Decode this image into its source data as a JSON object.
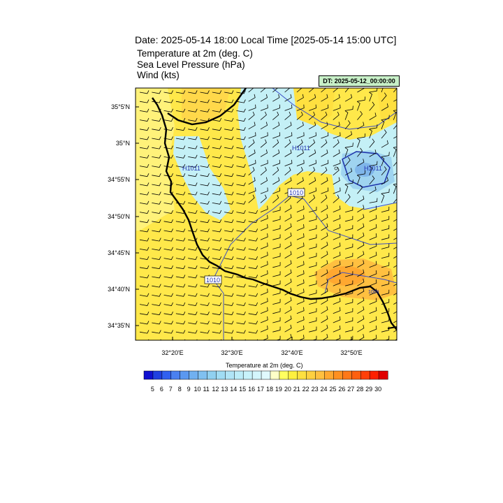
{
  "header": {
    "title": "Date: 2025-05-14  18:00 Local Time [2025-05-14  15:00 UTC]",
    "line1": "Temperature at 2m   (deg. C)",
    "line2": "Sea Level Pressure   (hPa)",
    "line3": "Wind   (kts)",
    "dt_badge": "DT: 2025-05-12_00:00:00"
  },
  "axes": {
    "lat_labels": [
      "35°5'N",
      "35°N",
      "34°55'N",
      "34°50'N",
      "34°45'N",
      "34°40'N",
      "34°35'N"
    ],
    "lon_labels": [
      "32°20'E",
      "32°30'E",
      "32°40'E",
      "32°50'E"
    ]
  },
  "map": {
    "high_labels": [
      "H1011",
      "H1011",
      "H1011"
    ],
    "isobar_labels": [
      "1010",
      "1010",
      "1009"
    ]
  },
  "colorbar": {
    "title": "Temperature at 2m  (deg. C)",
    "ticks": [
      "5",
      "6",
      "7",
      "8",
      "9",
      "10",
      "11",
      "12",
      "13",
      "14",
      "15",
      "16",
      "17",
      "18",
      "19",
      "20",
      "21",
      "22",
      "23",
      "24",
      "25",
      "26",
      "27",
      "28",
      "29",
      "30"
    ],
    "colors": [
      "#1010d0",
      "#2040e0",
      "#3060f0",
      "#4a80f0",
      "#5a98f0",
      "#70b0f0",
      "#80c0f0",
      "#90d0f0",
      "#a0dcf4",
      "#b0e4f6",
      "#bcecf8",
      "#c8f2fa",
      "#d4f6fc",
      "#e0fafe",
      "#ffffc8",
      "#ffff60",
      "#fff040",
      "#ffe040",
      "#ffd040",
      "#ffc040",
      "#ffa830",
      "#ff9020",
      "#ff7818",
      "#ff6010",
      "#ff4008",
      "#ff2000",
      "#e00000"
    ]
  }
}
